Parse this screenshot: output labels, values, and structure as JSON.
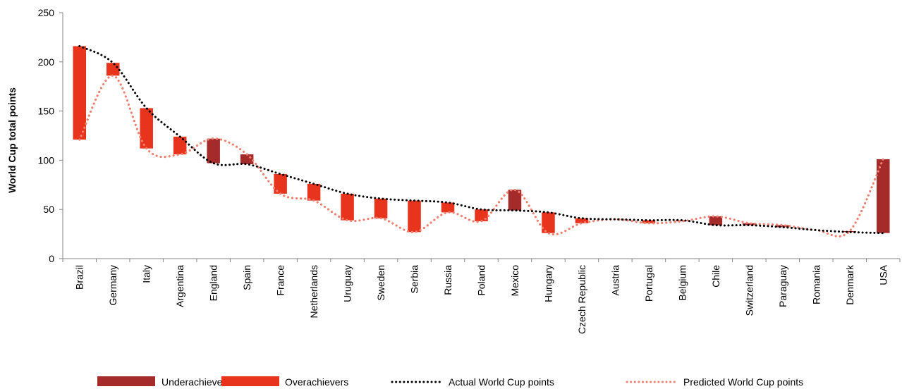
{
  "chart_data": {
    "type": "bar",
    "ylabel": "World Cup total points",
    "ylim": [
      0,
      250
    ],
    "yticks": [
      0,
      50,
      100,
      150,
      200,
      250
    ],
    "grid": false,
    "legend_position": "bottom",
    "categories": [
      "Brazil",
      "Germany",
      "Italy",
      "Argentina",
      "England",
      "Spain",
      "France",
      "Netherlands",
      "Uruguay",
      "Sweden",
      "Serbia",
      "Russia",
      "Poland",
      "Mexico",
      "Hungary",
      "Czech Republic",
      "Austria",
      "Portugal",
      "Belgium",
      "Chile",
      "Switzerland",
      "Paraguay",
      "Romania",
      "Denmark",
      "USA"
    ],
    "series": [
      {
        "name": "Actual World Cup points",
        "style": "dotted-line",
        "color": "#000000",
        "values": [
          216,
          199,
          153,
          124,
          97,
          96,
          86,
          76,
          66,
          61,
          59,
          57,
          50,
          49,
          47,
          41,
          40,
          39,
          39,
          34,
          34,
          32,
          29,
          27,
          26
        ]
      },
      {
        "name": "Predicted World Cup points",
        "style": "dotted-line",
        "color": "#f08070",
        "values": [
          121,
          186,
          112,
          106,
          122,
          106,
          66,
          59,
          39,
          41,
          27,
          47,
          38,
          70,
          26,
          36,
          40,
          36,
          38,
          43,
          36,
          34,
          29,
          28,
          101
        ]
      }
    ],
    "legend": [
      {
        "label": "Underachievers",
        "color": "#a52a2a",
        "kind": "box"
      },
      {
        "label": "Overachievers",
        "color": "#e8341c",
        "kind": "box"
      },
      {
        "label": "Actual World Cup points",
        "color": "#000000",
        "kind": "dotted-line"
      },
      {
        "label": "Predicted World Cup points",
        "color": "#f08070",
        "kind": "dotted-line"
      }
    ],
    "colors": {
      "underachievers": "#a52a2a",
      "overachievers": "#e8341c"
    }
  }
}
